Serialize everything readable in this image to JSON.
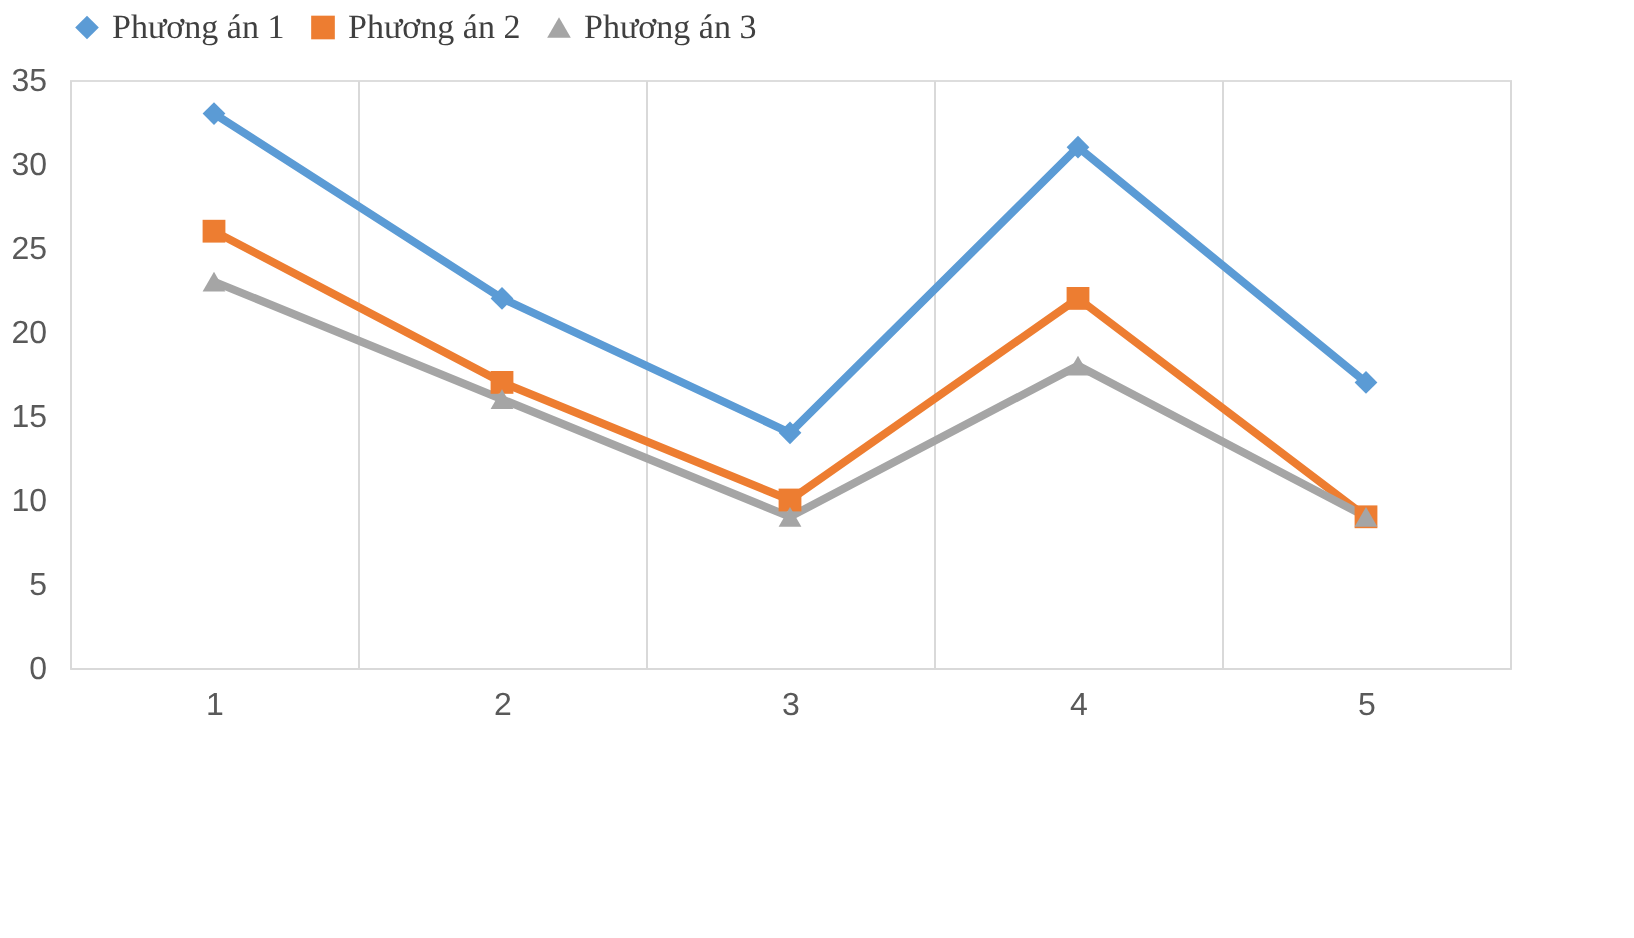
{
  "chart_data": {
    "type": "line",
    "categories": [
      "1",
      "2",
      "3",
      "4",
      "5"
    ],
    "series": [
      {
        "name": "Phương án 1",
        "color": "#5b9bd5",
        "marker": "diamond",
        "values": [
          33,
          22,
          14,
          31,
          17
        ]
      },
      {
        "name": "Phương án 2",
        "color": "#ed7d31",
        "marker": "square",
        "values": [
          26,
          17,
          10,
          22,
          9
        ]
      },
      {
        "name": "Phương án 3",
        "color": "#a5a5a5",
        "marker": "triangle",
        "values": [
          23,
          16,
          9,
          18,
          9
        ]
      }
    ],
    "ylim": [
      0,
      35
    ],
    "yticks": [
      0,
      5,
      10,
      15,
      20,
      25,
      30,
      35
    ],
    "grid": "x",
    "legend": "top",
    "line_style": "solid"
  }
}
